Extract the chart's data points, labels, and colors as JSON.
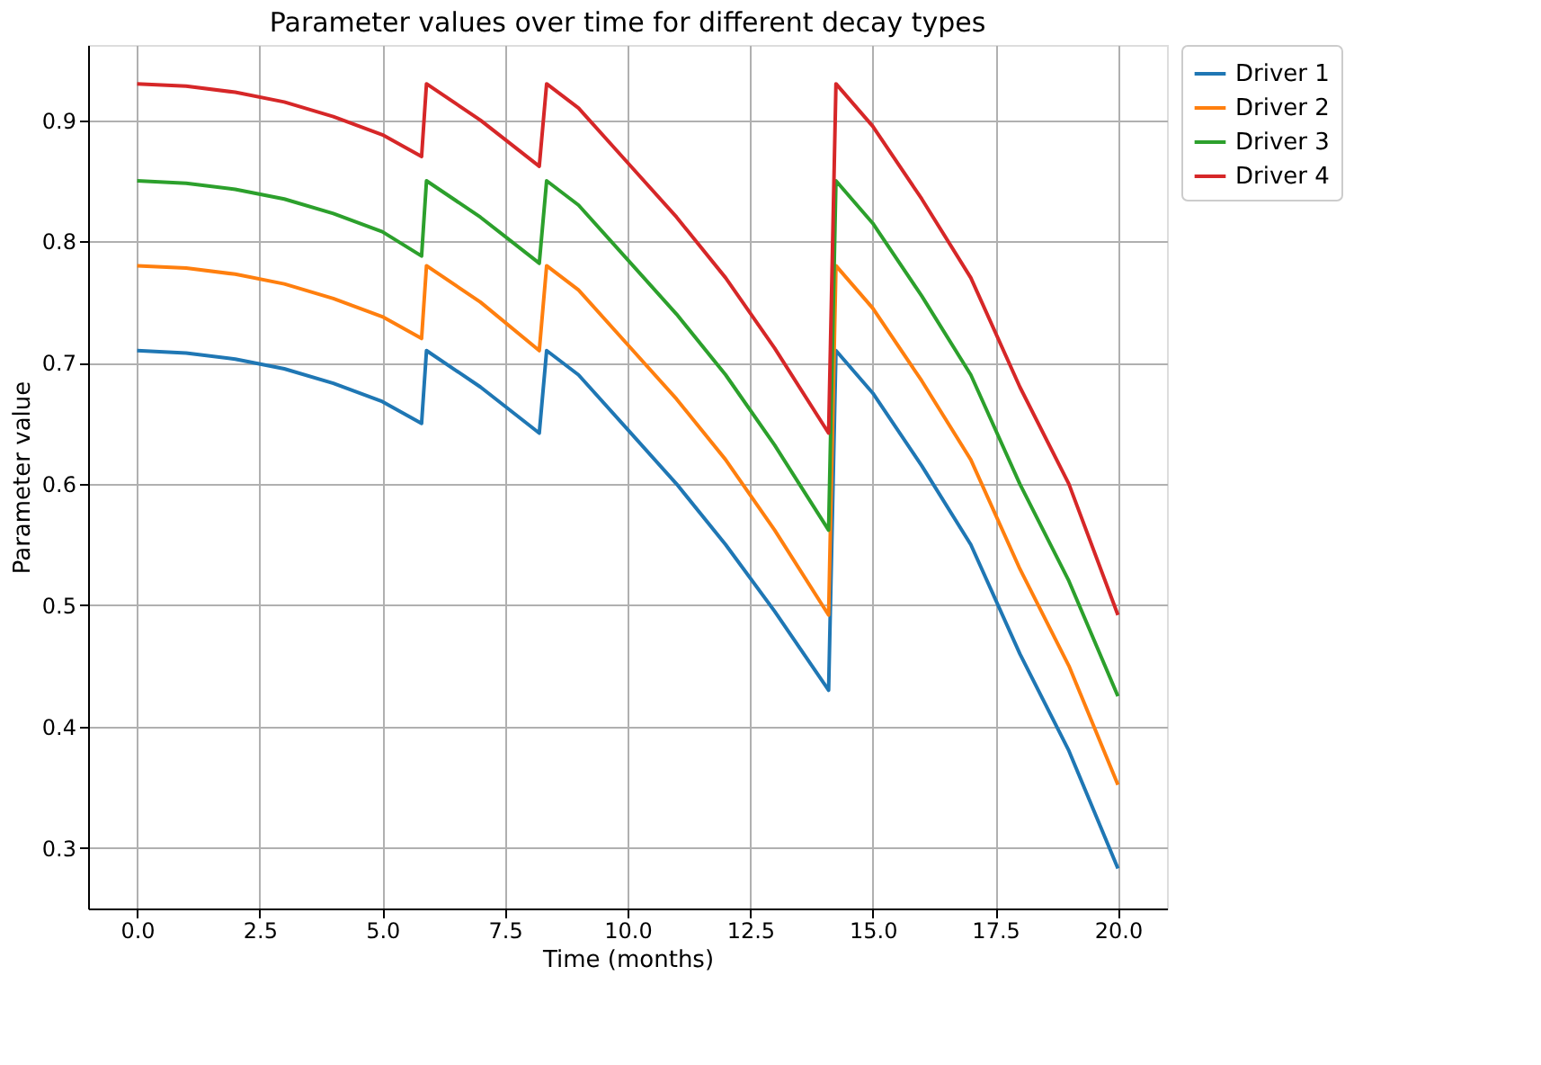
{
  "chart_data": {
    "type": "line",
    "title": "Parameter values over time for different decay types",
    "xlabel": "Time (months)",
    "ylabel": "Parameter value",
    "x": [
      0,
      1,
      2,
      3,
      4,
      5,
      5.8,
      5.9,
      7,
      8.2,
      8.35,
      9,
      10,
      11,
      12,
      13,
      14.1,
      14.25,
      15,
      16,
      17,
      18,
      19,
      20
    ],
    "series": [
      {
        "name": "Driver 1",
        "color": "#1f77b4",
        "values": [
          0.71,
          0.708,
          0.703,
          0.695,
          0.683,
          0.668,
          0.65,
          0.71,
          0.68,
          0.642,
          0.71,
          0.69,
          0.645,
          0.6,
          0.55,
          0.495,
          0.43,
          0.71,
          0.675,
          0.615,
          0.55,
          0.46,
          0.38,
          0.283
        ]
      },
      {
        "name": "Driver 2",
        "color": "#ff7f0e",
        "values": [
          0.78,
          0.778,
          0.773,
          0.765,
          0.753,
          0.738,
          0.72,
          0.78,
          0.75,
          0.71,
          0.78,
          0.76,
          0.715,
          0.67,
          0.62,
          0.562,
          0.492,
          0.78,
          0.745,
          0.685,
          0.62,
          0.53,
          0.45,
          0.352
        ]
      },
      {
        "name": "Driver 3",
        "color": "#2ca02c",
        "values": [
          0.85,
          0.848,
          0.843,
          0.835,
          0.823,
          0.808,
          0.788,
          0.85,
          0.82,
          0.782,
          0.85,
          0.83,
          0.785,
          0.74,
          0.69,
          0.632,
          0.562,
          0.85,
          0.815,
          0.755,
          0.69,
          0.6,
          0.52,
          0.425
        ]
      },
      {
        "name": "Driver 4",
        "color": "#d62728",
        "values": [
          0.93,
          0.928,
          0.923,
          0.915,
          0.903,
          0.888,
          0.87,
          0.93,
          0.9,
          0.862,
          0.93,
          0.91,
          0.865,
          0.82,
          0.77,
          0.712,
          0.642,
          0.93,
          0.895,
          0.835,
          0.77,
          0.68,
          0.6,
          0.492
        ]
      }
    ],
    "xlim": [
      -1.0,
      21.0
    ],
    "xticks": [
      {
        "value": 0,
        "label": "0.0"
      },
      2.5,
      {
        "value": 5,
        "label": "5.0"
      },
      7.5,
      {
        "value": 10,
        "label": "10.0"
      },
      12.5,
      {
        "value": 15,
        "label": "15.0"
      },
      17.5,
      {
        "value": 20,
        "label": "20.0"
      }
    ],
    "ylim": [
      0.25,
      0.962
    ],
    "yticks": [
      0.3,
      0.4,
      0.5,
      0.6,
      0.7,
      0.8,
      0.9
    ],
    "grid": true,
    "legend": "right",
    "line_style": "solid",
    "marker": "none"
  }
}
